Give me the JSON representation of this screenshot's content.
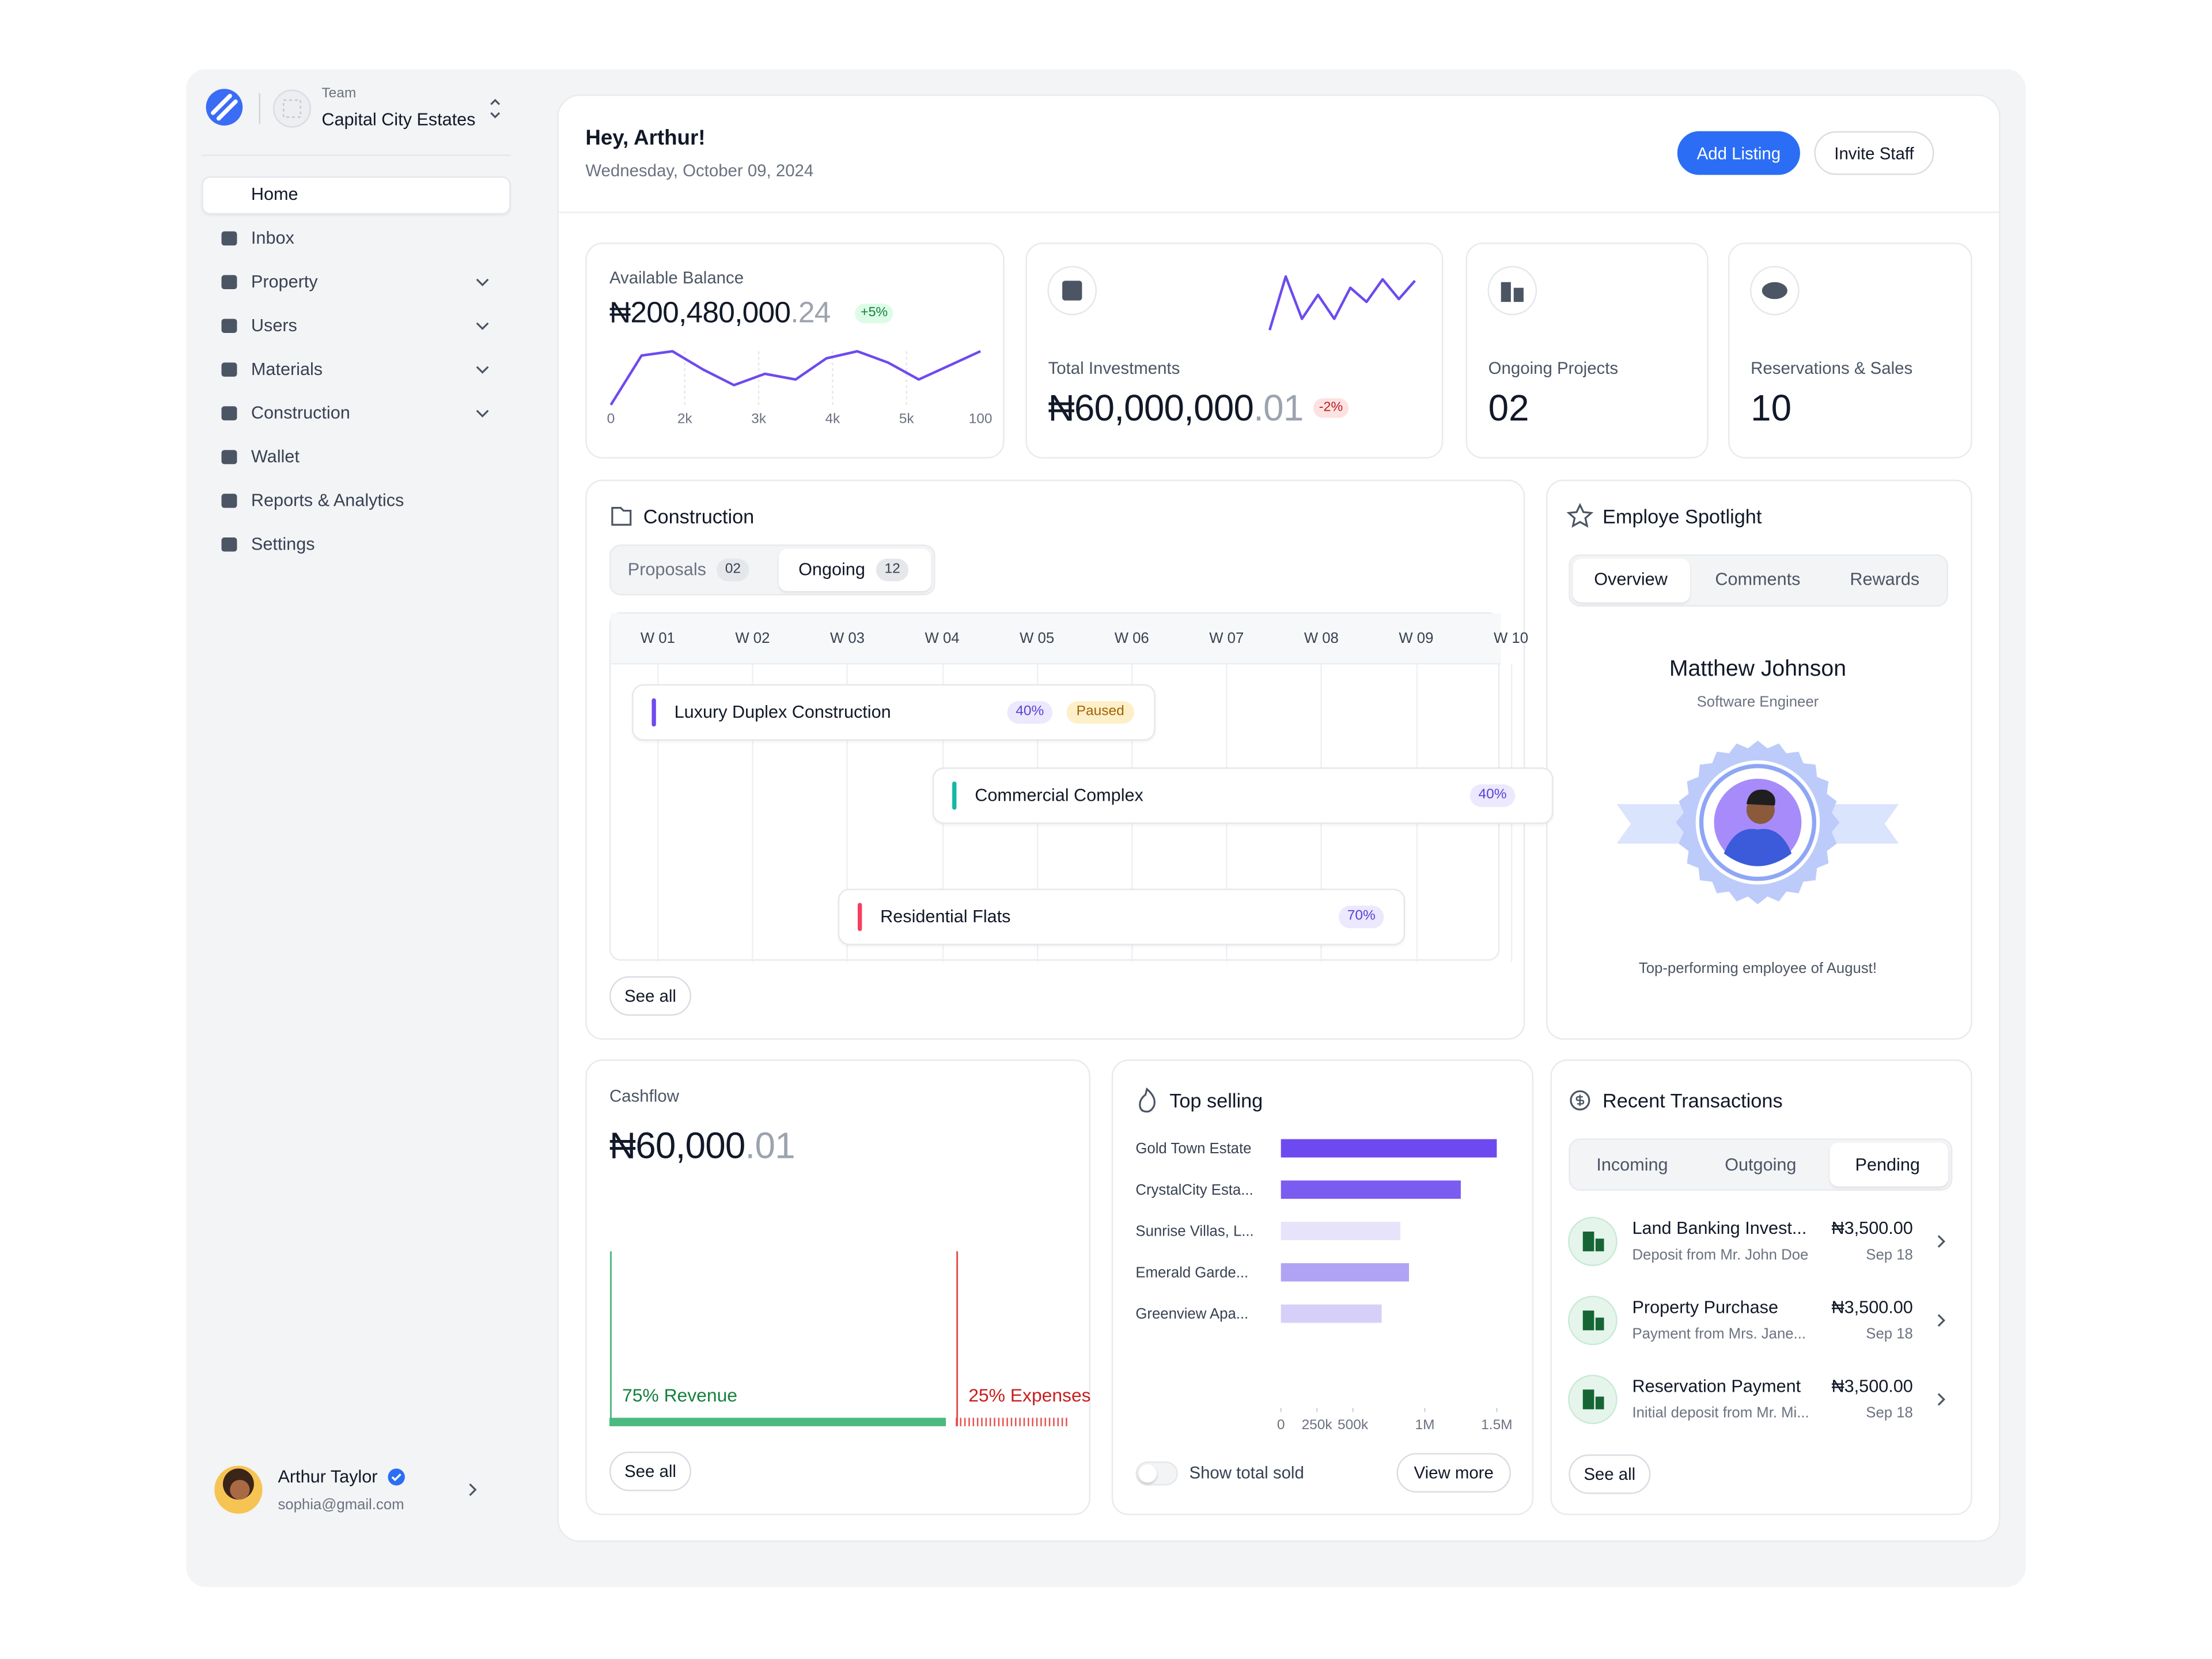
{
  "sidebar": {
    "team_label": "Team",
    "team_name": "Capital City Estates",
    "nav": [
      {
        "label": "Home",
        "active": true
      },
      {
        "label": "Inbox"
      },
      {
        "label": "Property",
        "submenu": true
      },
      {
        "label": "Users",
        "submenu": true
      },
      {
        "label": "Materials",
        "submenu": true
      },
      {
        "label": "Construction",
        "submenu": true
      },
      {
        "label": "Wallet"
      },
      {
        "label": "Reports & Analytics"
      },
      {
        "label": "Settings"
      }
    ],
    "user": {
      "name": "Arthur Taylor",
      "email": "sophia@gmail.com"
    }
  },
  "header": {
    "greeting": "Hey, Arthur!",
    "date": "Wednesday, October 09, 2024",
    "actions": [
      "Add Listing",
      "Invite Staff"
    ]
  },
  "stats": {
    "balance": {
      "label": "Available Balance",
      "amount": "₦200,480,000",
      "cents": ".24",
      "change": "+5%",
      "chart": {
        "type": "line",
        "categories": [
          "0",
          "2k",
          "3k",
          "4k",
          "5k",
          "100"
        ],
        "values": [
          0,
          35,
          38,
          25,
          14,
          22,
          18,
          33,
          38,
          30,
          18,
          28,
          38
        ],
        "color": "#6d4aef"
      }
    },
    "investments": {
      "label": "Total Investments",
      "amount": "₦60,000,000",
      "cents": ".01",
      "change": "-2%",
      "chart": {
        "type": "line",
        "values": [
          0,
          38,
          8,
          25,
          8,
          30,
          20,
          36,
          22,
          35
        ],
        "color": "#6d4aef"
      }
    },
    "projects": {
      "label": "Ongoing Projects",
      "value": "02"
    },
    "reservations": {
      "label": "Reservations & Sales",
      "value": "10"
    }
  },
  "construction": {
    "title": "Construction",
    "tabs": [
      {
        "label": "Proposals",
        "count": "02"
      },
      {
        "label": "Ongoing",
        "count": "12"
      }
    ],
    "active_tab": 1,
    "weeks": [
      "W 01",
      "W 02",
      "W 03",
      "W 04",
      "W 05",
      "W 06",
      "W 07",
      "W 08",
      "W 09",
      "W 10"
    ],
    "projects": [
      {
        "name": "Luxury Duplex Construction",
        "progress": "40%",
        "status": "Paused",
        "color": "#6d4aef"
      },
      {
        "name": "Commercial Complex",
        "progress": "40%",
        "color": "#14b8a6"
      },
      {
        "name": "Residential Flats",
        "progress": "70%",
        "color": "#f43f5e"
      }
    ],
    "see_all": "See all"
  },
  "spotlight": {
    "title": "Employe Spotlight",
    "tabs": [
      "Overview",
      "Comments",
      "Rewards"
    ],
    "active_tab": 0,
    "name": "Matthew Johnson",
    "role": "Software Engineer",
    "caption": "Top-performing employee of August!"
  },
  "cashflow": {
    "label": "Cashflow",
    "amount": "₦60,000",
    "cents": ".01",
    "segments": [
      {
        "value": 75,
        "label": "75% Revenue",
        "color": "#4cba7f"
      },
      {
        "value": 25,
        "label": "25% Expenses",
        "color": "#e2504c"
      }
    ],
    "see_all": "See all"
  },
  "top_selling": {
    "title": "Top selling",
    "chart": {
      "type": "bar",
      "orientation": "horizontal",
      "categories": [
        "Gold Town Estate",
        "CrystalCity Esta...",
        "Sunrise Villas, L...",
        "Emerald Garde...",
        "Greenview Apa..."
      ],
      "values": [
        1500000,
        1250000,
        830000,
        890000,
        700000
      ],
      "colors": [
        "#6d4aef",
        "#7b5cf0",
        "#e6e3fb",
        "#b1a3f3",
        "#d6cff8"
      ],
      "xlim": [
        0,
        1500000
      ],
      "xticks": [
        0,
        {
          "value": 250000,
          "label": "250k"
        },
        {
          "value": 500000,
          "label": "500k"
        },
        {
          "value": 1000000,
          "label": "1M"
        },
        {
          "value": 1500000,
          "label": "1.5M"
        }
      ]
    },
    "toggle": "Show total sold",
    "more": "View more"
  },
  "transactions": {
    "title": "Recent Transactions",
    "tabs": [
      "Incoming",
      "Outgoing",
      "Pending"
    ],
    "active_tab": 2,
    "items": [
      {
        "title": "Land Banking Invest...",
        "subtitle": "Deposit from Mr. John Doe",
        "amount": "₦3,500.00",
        "date": "Sep 18"
      },
      {
        "title": "Property Purchase",
        "subtitle": "Payment from Mrs. Jane...",
        "amount": "₦3,500.00",
        "date": "Sep 18"
      },
      {
        "title": "Reservation Payment",
        "subtitle": "Initial deposit from Mr. Mi...",
        "amount": "₦3,500.00",
        "date": "Sep 18"
      }
    ],
    "see_all": "See all"
  }
}
